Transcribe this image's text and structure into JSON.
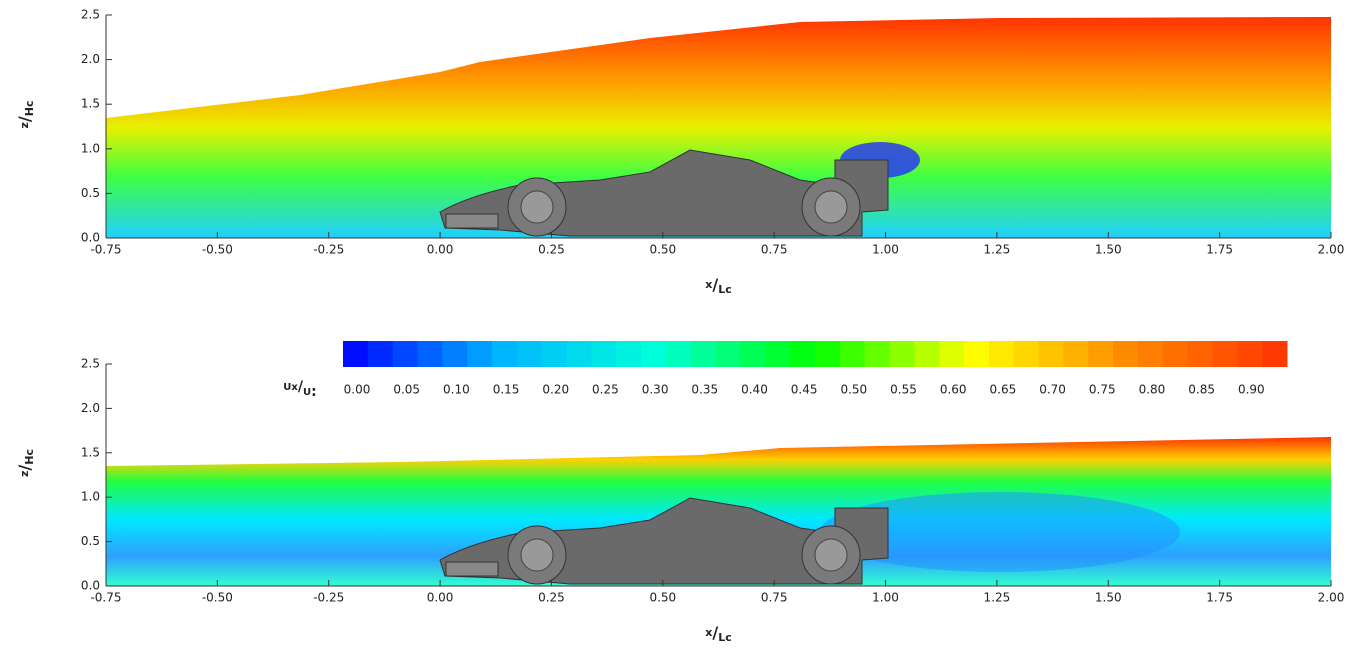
{
  "chart_data": [
    {
      "type": "contour",
      "xlabel": {
        "numerator": "x",
        "separator": "/",
        "denominator": "Lc"
      },
      "ylabel": {
        "numerator": "z",
        "separator": "/",
        "denominator": "Hc"
      },
      "xlim": [
        -0.75,
        2.0
      ],
      "xticks": [
        -0.75,
        {
          "value": -0.5,
          "label": "-0.50"
        },
        -0.25,
        {
          "value": 0,
          "label": "0.00"
        },
        0.25,
        {
          "value": 0.5,
          "label": "0.50"
        },
        0.75,
        {
          "value": 1,
          "label": "1.00"
        },
        1.25,
        {
          "value": 1.5,
          "label": "1.50"
        },
        1.75,
        {
          "value": 2,
          "label": "2.00"
        }
      ],
      "ylim": [
        0,
        2.5
      ],
      "yticks": [
        {
          "value": 0,
          "label": "0.0"
        },
        0.5,
        {
          "value": 1,
          "label": "1.0"
        },
        1.5,
        {
          "value": 2,
          "label": "2.0"
        },
        2.5
      ]
    },
    {
      "type": "contour",
      "xlabel": {
        "numerator": "x",
        "separator": "/",
        "denominator": "Lc"
      },
      "ylabel": {
        "numerator": "z",
        "separator": "/",
        "denominator": "Hc"
      },
      "xlim": [
        -0.75,
        2.0
      ],
      "xticks": [
        -0.75,
        {
          "value": -0.5,
          "label": "-0.50"
        },
        -0.25,
        {
          "value": 0,
          "label": "0.00"
        },
        0.25,
        {
          "value": 0.5,
          "label": "0.50"
        },
        0.75,
        {
          "value": 1,
          "label": "1.00"
        },
        1.25,
        {
          "value": 1.5,
          "label": "1.50"
        },
        1.75,
        {
          "value": 2,
          "label": "2.00"
        }
      ],
      "ylim": [
        0,
        2.5
      ],
      "yticks": [
        {
          "value": 0,
          "label": "0.0"
        },
        0.5,
        {
          "value": 1,
          "label": "1.0"
        },
        1.5,
        {
          "value": 2,
          "label": "2.0"
        },
        2.5
      ],
      "colorbar": {
        "label": {
          "numerator": "Ux",
          "separator": "/",
          "denominator": "U",
          "suffix": ":"
        },
        "clim": [
          0,
          0.95
        ],
        "colors": [
          "#0000ff",
          "#00b4ff",
          "#00ffd8",
          "#00ff00",
          "#ffff00",
          "#ff8800",
          "#ff3300"
        ],
        "ticks": [
          {
            "value": 0,
            "label": "0.00"
          },
          0.05,
          {
            "value": 0.1,
            "label": "0.10"
          },
          0.15,
          {
            "value": 0.2,
            "label": "0.20"
          },
          0.25,
          {
            "value": 0.3,
            "label": "0.30"
          },
          0.35,
          {
            "value": 0.4,
            "label": "0.40"
          },
          0.45,
          {
            "value": 0.5,
            "label": "0.50"
          },
          0.55,
          {
            "value": 0.6,
            "label": "0.60"
          },
          0.65,
          {
            "value": 0.7,
            "label": "0.70"
          },
          0.75,
          {
            "value": 0.8,
            "label": "0.80"
          },
          0.85,
          {
            "value": 0.9,
            "label": "0.90"
          }
        ]
      }
    }
  ]
}
